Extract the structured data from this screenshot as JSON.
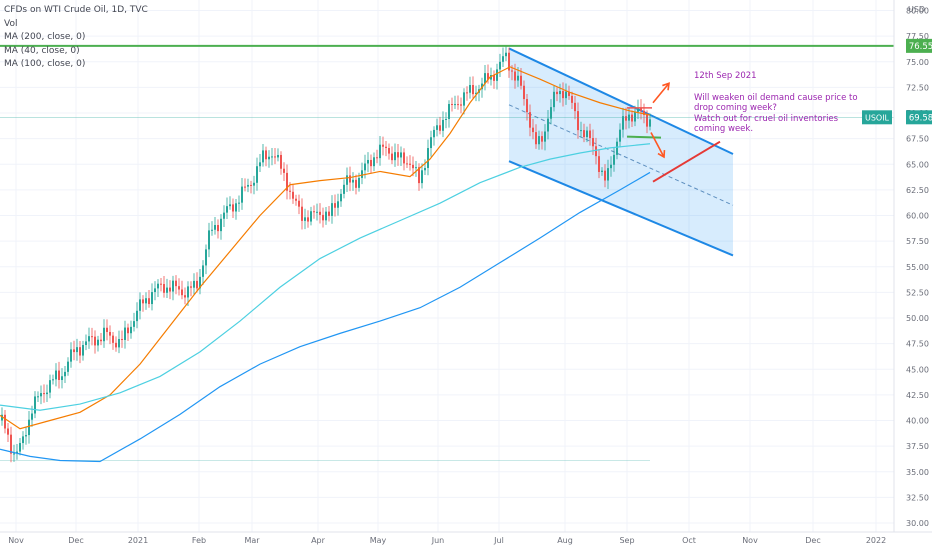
{
  "legend": {
    "title": "CFDs on WTI Crude Oil, 1D, TVC",
    "vol": "Vol",
    "ma200": "MA (200, close, 0)",
    "ma40": "MA (40, close, 0)",
    "ma100": "MA (100, close, 0)"
  },
  "annotation": {
    "date": "12th Sep 2021",
    "line1": "Will weaken oil demand cause price to",
    "line2": "drop coming week?",
    "line3": "Watch out for cruel oil inventories",
    "line4": "coming week."
  },
  "axis": {
    "currency": "USD",
    "symbol": "USOIL",
    "last_price": "69.58",
    "resistance_price": "76.55"
  },
  "colors": {
    "candle_up": "#26a69a",
    "candle_down": "#ef5350",
    "ma40": "#f57c00",
    "ma100": "#4dd0e1",
    "ma200": "#2196f3",
    "channel": "#1e88e5",
    "resistance": "#4caf50",
    "annotation": "#9c27b0",
    "arrow": "#ff5722"
  },
  "chart_data": {
    "type": "candlestick",
    "symbol": "USOIL",
    "timeframe": "1D",
    "x_ticks": [
      "Nov",
      "Dec",
      "2021",
      "Feb",
      "Mar",
      "Apr",
      "May",
      "Jun",
      "Jul",
      "Aug",
      "Sep",
      "Oct",
      "Nov",
      "Dec",
      "2022"
    ],
    "y_ticks": [
      "30.00",
      "32.50",
      "35.00",
      "37.50",
      "40.00",
      "42.50",
      "45.00",
      "47.50",
      "50.00",
      "52.50",
      "55.00",
      "57.50",
      "60.00",
      "62.50",
      "65.00",
      "67.50",
      "70.00",
      "72.50",
      "75.00",
      "77.50",
      "80.00"
    ],
    "ylim": [
      29.5,
      81.2
    ],
    "series": [
      {
        "name": "MA (40, close, 0)",
        "points": [
          [
            0,
            40.5
          ],
          [
            20,
            39.2
          ],
          [
            50,
            40.0
          ],
          [
            80,
            40.8
          ],
          [
            110,
            42.5
          ],
          [
            140,
            45.5
          ],
          [
            160,
            48.0
          ],
          [
            180,
            50.5
          ],
          [
            200,
            53.0
          ],
          [
            230,
            56.5
          ],
          [
            260,
            60.0
          ],
          [
            290,
            63.0
          ],
          [
            320,
            63.4
          ],
          [
            350,
            63.7
          ],
          [
            380,
            64.3
          ],
          [
            410,
            63.8
          ],
          [
            430,
            65.5
          ],
          [
            450,
            68.0
          ],
          [
            470,
            71.0
          ],
          [
            490,
            73.5
          ],
          [
            510,
            74.5
          ],
          [
            540,
            73.3
          ],
          [
            570,
            72.0
          ],
          [
            600,
            71.0
          ],
          [
            630,
            70.2
          ],
          [
            650,
            69.8
          ]
        ]
      },
      {
        "name": "MA (100, close, 0)",
        "points": [
          [
            0,
            41.5
          ],
          [
            40,
            41.0
          ],
          [
            80,
            41.6
          ],
          [
            120,
            42.7
          ],
          [
            160,
            44.3
          ],
          [
            200,
            46.7
          ],
          [
            240,
            49.7
          ],
          [
            280,
            53.0
          ],
          [
            320,
            55.8
          ],
          [
            360,
            57.8
          ],
          [
            400,
            59.5
          ],
          [
            440,
            61.2
          ],
          [
            480,
            63.2
          ],
          [
            520,
            64.7
          ],
          [
            550,
            65.5
          ],
          [
            580,
            66.1
          ],
          [
            610,
            66.6
          ],
          [
            640,
            66.9
          ],
          [
            650,
            67.0
          ]
        ]
      },
      {
        "name": "MA (200, close, 0)",
        "points": [
          [
            0,
            37.2
          ],
          [
            30,
            36.5
          ],
          [
            60,
            36.1
          ],
          [
            100,
            36.0
          ],
          [
            140,
            38.2
          ],
          [
            180,
            40.6
          ],
          [
            220,
            43.3
          ],
          [
            260,
            45.5
          ],
          [
            300,
            47.2
          ],
          [
            340,
            48.5
          ],
          [
            380,
            49.7
          ],
          [
            420,
            51.0
          ],
          [
            460,
            53.0
          ],
          [
            500,
            55.4
          ],
          [
            540,
            57.8
          ],
          [
            580,
            60.3
          ],
          [
            620,
            62.5
          ],
          [
            650,
            64.2
          ]
        ]
      }
    ],
    "overlays": {
      "resistance_level": 76.55,
      "last_close": 69.58,
      "channel": {
        "upper": [
          [
            509,
            76.3
          ],
          [
            733,
            66.0
          ]
        ],
        "lower": [
          [
            509,
            65.3
          ],
          [
            733,
            56.1
          ]
        ],
        "midline": [
          [
            509,
            70.8
          ],
          [
            733,
            61.0
          ]
        ]
      }
    }
  }
}
